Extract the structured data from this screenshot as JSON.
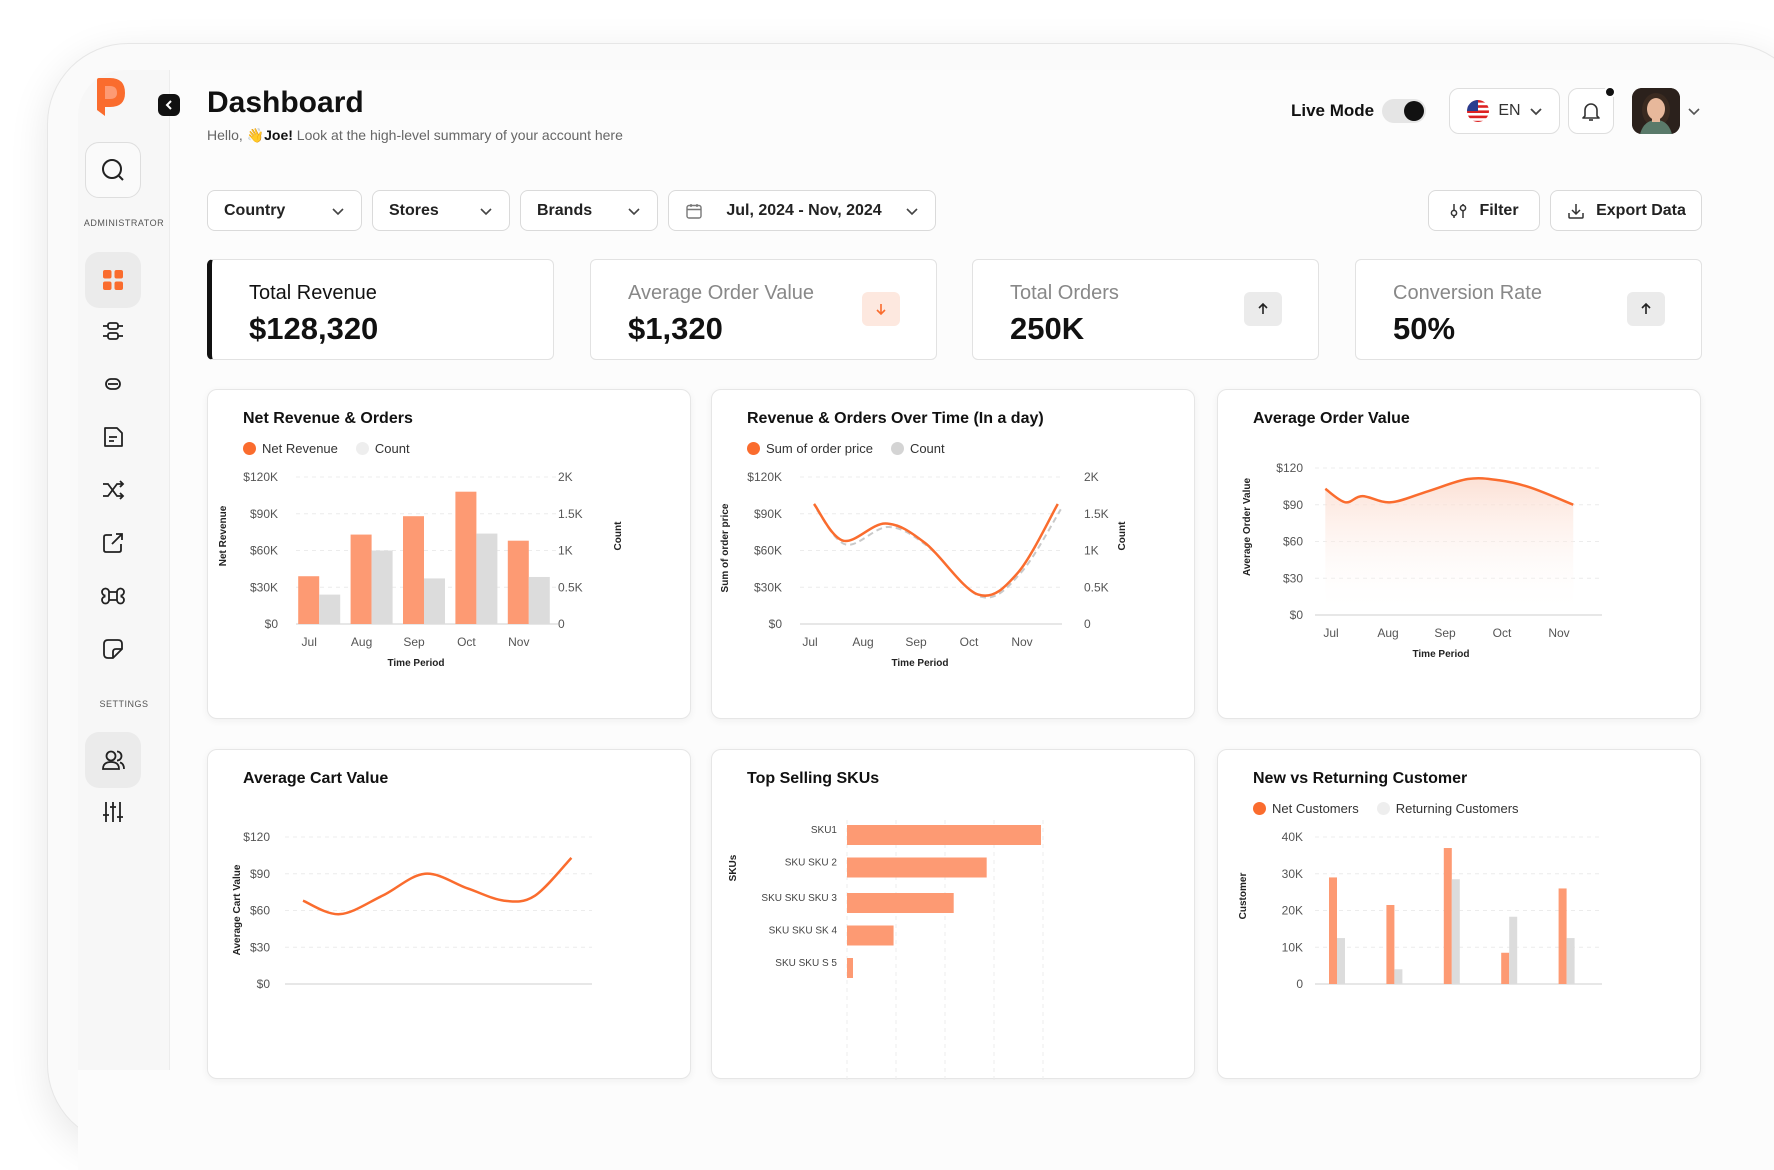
{
  "header": {
    "title": "Dashboard",
    "greeting_prefix": "Hello, ",
    "greeting_name": "Joe!",
    "greeting_suffix": " Look at the high-level summary of your account here",
    "live_mode_label": "Live Mode",
    "live_mode_on": true,
    "language": "EN"
  },
  "sidebar": {
    "admin_label": "ADMINISTRATOR",
    "settings_label": "SETTINGS",
    "admin_items": [
      "dashboard",
      "sliders",
      "link",
      "document",
      "shuffle",
      "share",
      "command",
      "sticky-note"
    ],
    "settings_items": [
      "users",
      "controls"
    ]
  },
  "filters": {
    "country": "Country",
    "stores": "Stores",
    "brands": "Brands",
    "date_range": "Jul, 2024 - Nov, 2024",
    "filter_label": "Filter",
    "export_label": "Export Data"
  },
  "kpis": [
    {
      "label": "Total Revenue",
      "value": "$128,320",
      "trend": "none"
    },
    {
      "label": "Average Order Value",
      "value": "$1,320",
      "trend": "down"
    },
    {
      "label": "Total Orders",
      "value": "250K",
      "trend": "up"
    },
    {
      "label": "Conversion Rate",
      "value": "50%",
      "trend": "up"
    }
  ],
  "colors": {
    "accent": "#fa6c2e",
    "accent_light": "#fd9a73",
    "gray_bar": "#dcdcdc",
    "text": "#111111"
  },
  "chart_data": [
    {
      "id": "net-revenue-orders",
      "type": "bar",
      "title": "Net Revenue & Orders",
      "legend": [
        "Net Revenue",
        "Count"
      ],
      "categories": [
        "Jul",
        "Aug",
        "Sep",
        "Oct",
        "Nov"
      ],
      "series": [
        {
          "name": "Net Revenue",
          "values": [
            39000,
            73000,
            88000,
            108000,
            68000
          ],
          "axis": "left"
        },
        {
          "name": "Count",
          "values": [
            400,
            1000,
            620,
            1230,
            640
          ],
          "axis": "right"
        }
      ],
      "y_ticks": [
        "$0",
        "$30K",
        "$60K",
        "$90K",
        "$120K"
      ],
      "y2_ticks": [
        "0",
        "0.5K",
        "1K",
        "1.5K",
        "2K"
      ],
      "ylim": [
        0,
        120000
      ],
      "y2lim": [
        0,
        2000
      ],
      "xlabel": "Time Period",
      "ylabel": "Net Revenue",
      "y2label": "Count"
    },
    {
      "id": "revenue-orders-over-time",
      "type": "line",
      "title": "Revenue & Orders Over Time (In a day)",
      "legend": [
        "Sum of order price",
        "Count"
      ],
      "categories": [
        "Jul",
        "Aug",
        "Sep",
        "Oct",
        "Nov"
      ],
      "series": [
        {
          "name": "Sum of order price",
          "values": [
            98000,
            68000,
            82000,
            66000,
            24000,
            42000,
            98000
          ],
          "axis": "left"
        },
        {
          "name": "Count",
          "values": [
            1550,
            1080,
            1320,
            1050,
            370,
            700,
            1560
          ],
          "axis": "right"
        }
      ],
      "x": [
        0,
        0.55,
        1.35,
        2.1,
        3.1,
        3.85,
        4.6
      ],
      "y_ticks": [
        "$0",
        "$30K",
        "$60K",
        "$90K",
        "$120K"
      ],
      "y2_ticks": [
        "0",
        "0.5K",
        "1K",
        "1.5K",
        "2K"
      ],
      "ylim": [
        0,
        120000
      ],
      "y2lim": [
        0,
        2000
      ],
      "xlabel": "Time Period",
      "ylabel": "Sum of order price",
      "y2label": "Count"
    },
    {
      "id": "average-order-value",
      "type": "area",
      "title": "Average Order Value",
      "categories": [
        "Jul",
        "Aug",
        "Sep",
        "Oct",
        "Nov"
      ],
      "series": [
        {
          "name": "Average Order Value",
          "values": [
            103,
            92,
            97,
            92,
            101,
            111,
            110,
            104,
            90
          ]
        }
      ],
      "x": [
        -0.1,
        0.25,
        0.55,
        1.05,
        1.7,
        2.4,
        2.95,
        3.5,
        4.25
      ],
      "y_ticks": [
        "$0",
        "$30",
        "$60",
        "$90",
        "$120"
      ],
      "ylim": [
        0,
        120
      ],
      "xlabel": "Time Period",
      "ylabel": "Average Order Value"
    },
    {
      "id": "average-cart-value",
      "type": "line",
      "title": "Average Cart Value",
      "series": [
        {
          "name": "Average Cart Value",
          "values": [
            68,
            57,
            72,
            90,
            78,
            68,
            72,
            103
          ]
        }
      ],
      "x": [
        0,
        0.6,
        1.3,
        2.0,
        2.7,
        3.3,
        3.8,
        4.4
      ],
      "y_ticks": [
        "$0",
        "$30",
        "$60",
        "$90",
        "$120"
      ],
      "ylim": [
        0,
        120
      ],
      "ylabel": "Average Cart Value"
    },
    {
      "id": "top-selling-skus",
      "type": "bar",
      "orientation": "horizontal",
      "title": "Top Selling SKUs",
      "categories": [
        "SKU1",
        "SKU SKU 2",
        "SKU SKU SKU 3",
        "SKU SKU SK 4",
        "SKU SKU S 5"
      ],
      "values": [
        100,
        72,
        55,
        24,
        3
      ],
      "ylabel": "SKUs"
    },
    {
      "id": "new-vs-returning",
      "type": "bar",
      "title": "New vs Returning Customer",
      "legend": [
        "Net Customers",
        "Returning Customers"
      ],
      "series": [
        {
          "name": "Net Customers",
          "values": [
            29000,
            21500,
            37000,
            8500,
            26000
          ]
        },
        {
          "name": "Returning Customers",
          "values": [
            12500,
            4000,
            28500,
            18300,
            12500
          ]
        }
      ],
      "y_ticks": [
        "0",
        "10K",
        "20K",
        "30K",
        "40K"
      ],
      "ylim": [
        0,
        40000
      ],
      "ylabel": "Customer"
    }
  ]
}
